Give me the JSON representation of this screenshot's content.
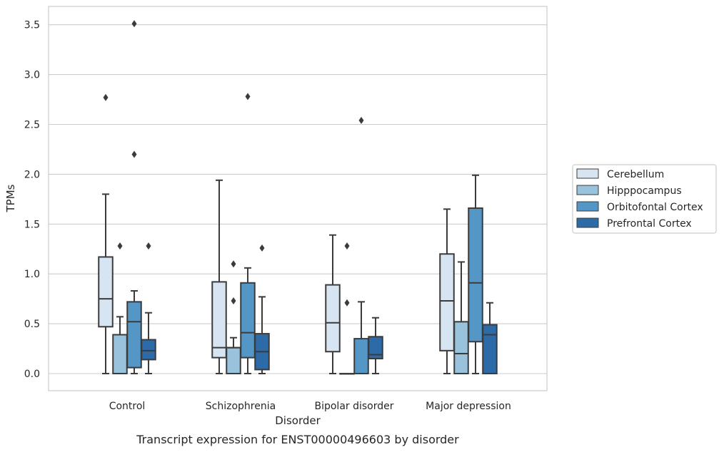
{
  "chart_data": {
    "type": "box",
    "title": "",
    "caption": "Transcript expression for ENST00000496603 by disorder",
    "xlabel": "Disorder",
    "ylabel": "TPMs",
    "ylim": [
      -0.17,
      3.69
    ],
    "yticks": [
      "0.0",
      "0.5",
      "1.0",
      "1.5",
      "2.0",
      "2.5",
      "3.0",
      "3.5"
    ],
    "grid": "horizontal",
    "legend_position": "right",
    "categories": [
      "Control",
      "Schizophrenia",
      "Bipolar disorder",
      "Major depression"
    ],
    "series": [
      {
        "name": "Cerebellum",
        "color": "#d7e5f3",
        "boxes": [
          {
            "whislo": 0.0,
            "q1": 0.47,
            "med": 0.75,
            "q3": 1.17,
            "whishi": 1.8,
            "fliers": [
              2.77
            ]
          },
          {
            "whislo": 0.0,
            "q1": 0.16,
            "med": 0.26,
            "q3": 0.92,
            "whishi": 1.94,
            "fliers": []
          },
          {
            "whislo": 0.0,
            "q1": 0.22,
            "med": 0.51,
            "q3": 0.89,
            "whishi": 1.39,
            "fliers": []
          },
          {
            "whislo": 0.0,
            "q1": 0.23,
            "med": 0.73,
            "q3": 1.2,
            "whishi": 1.65,
            "fliers": []
          }
        ]
      },
      {
        "name": "Hipppocampus",
        "color": "#99c3dd",
        "boxes": [
          {
            "whislo": 0.0,
            "q1": 0.0,
            "med": 0.0,
            "q3": 0.39,
            "whishi": 0.57,
            "fliers": [
              1.28
            ]
          },
          {
            "whislo": 0.0,
            "q1": 0.0,
            "med": 0.26,
            "q3": 0.26,
            "whishi": 0.36,
            "fliers": [
              0.73,
              1.1
            ]
          },
          {
            "whislo": 0.0,
            "q1": 0.0,
            "med": 0.0,
            "q3": 0.0,
            "whishi": 0.0,
            "fliers": [
              0.71,
              1.28
            ]
          },
          {
            "whislo": 0.0,
            "q1": 0.0,
            "med": 0.2,
            "q3": 0.52,
            "whishi": 1.12,
            "fliers": []
          }
        ]
      },
      {
        "name": "Orbitofontal Cortex",
        "color": "#5497c6",
        "boxes": [
          {
            "whislo": 0.0,
            "q1": 0.06,
            "med": 0.52,
            "q3": 0.72,
            "whishi": 0.83,
            "fliers": [
              2.2,
              3.51
            ]
          },
          {
            "whislo": 0.0,
            "q1": 0.16,
            "med": 0.41,
            "q3": 0.91,
            "whishi": 1.06,
            "fliers": [
              2.78
            ]
          },
          {
            "whislo": 0.0,
            "q1": 0.0,
            "med": 0.0,
            "q3": 0.35,
            "whishi": 0.72,
            "fliers": [
              2.54
            ]
          },
          {
            "whislo": 0.0,
            "q1": 0.32,
            "med": 0.91,
            "q3": 1.66,
            "whishi": 1.99,
            "fliers": []
          }
        ]
      },
      {
        "name": "Prefrontal Cortex",
        "color": "#2d6ba8",
        "boxes": [
          {
            "whislo": 0.0,
            "q1": 0.14,
            "med": 0.23,
            "q3": 0.34,
            "whishi": 0.61,
            "fliers": [
              1.28
            ]
          },
          {
            "whislo": 0.0,
            "q1": 0.04,
            "med": 0.22,
            "q3": 0.4,
            "whishi": 0.77,
            "fliers": [
              1.26
            ]
          },
          {
            "whislo": 0.0,
            "q1": 0.15,
            "med": 0.19,
            "q3": 0.37,
            "whishi": 0.56,
            "fliers": []
          },
          {
            "whislo": 0.0,
            "q1": 0.0,
            "med": 0.39,
            "q3": 0.49,
            "whishi": 0.71,
            "fliers": []
          }
        ]
      }
    ]
  }
}
